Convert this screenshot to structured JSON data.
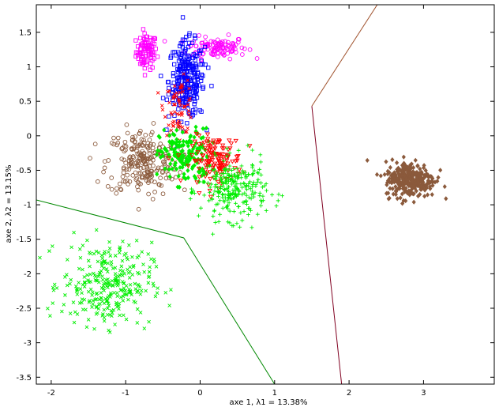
{
  "chart_data": {
    "type": "scatter",
    "title": "",
    "xlabel": "axe 1,  λ1 = 13.38%",
    "ylabel": "axe 2,  λ2 = 13.15%",
    "xlim": [
      -2.2,
      3.95
    ],
    "ylim": [
      -3.6,
      1.9
    ],
    "x_ticks": [
      -2,
      -1,
      0,
      1,
      2,
      3
    ],
    "x_tick_labels": [
      "-2",
      "-1",
      "0",
      "1",
      "2",
      "3"
    ],
    "y_ticks": [
      1.5,
      1,
      0.5,
      0,
      -0.5,
      -1,
      -1.5,
      -2,
      -2.5,
      -3,
      -3.5
    ],
    "y_tick_labels": [
      "1.5",
      "1",
      "0.5",
      "0",
      "-0.5",
      "-1",
      "-1.5",
      "-2",
      "-2.5",
      "-3",
      "-3.5"
    ],
    "grid": false,
    "legend": "none",
    "clusters": [
      {
        "color": "#ff00ff",
        "marker": "square",
        "cx": -0.72,
        "cy": 1.22,
        "sx": 0.07,
        "sy": 0.13,
        "n": 90
      },
      {
        "color": "#ff00ff",
        "marker": "circle",
        "cx": 0.22,
        "cy": 1.28,
        "sx": 0.2,
        "sy": 0.08,
        "n": 110
      },
      {
        "color": "#0000ff",
        "marker": "square",
        "cx": -0.18,
        "cy": 0.8,
        "sx": 0.12,
        "sy": 0.28,
        "n": 260
      },
      {
        "color": "#ff0000",
        "marker": "x",
        "cx": -0.28,
        "cy": 0.42,
        "sx": 0.1,
        "sy": 0.2,
        "n": 70
      },
      {
        "color": "#8b5a3c",
        "marker": "circle",
        "cx": -0.78,
        "cy": -0.38,
        "sx": 0.24,
        "sy": 0.24,
        "n": 240
      },
      {
        "color": "#00ee00",
        "marker": "diamond",
        "cx": -0.2,
        "cy": -0.3,
        "sx": 0.17,
        "sy": 0.2,
        "n": 170
      },
      {
        "color": "#ff0000",
        "marker": "triangle",
        "cx": 0.22,
        "cy": -0.35,
        "sx": 0.17,
        "sy": 0.17,
        "n": 140
      },
      {
        "color": "#00ee00",
        "marker": "plus",
        "cx": 0.45,
        "cy": -0.78,
        "sx": 0.22,
        "sy": 0.22,
        "n": 260
      },
      {
        "color": "#00ee00",
        "marker": "x",
        "cx": -1.25,
        "cy": -2.15,
        "sx": 0.3,
        "sy": 0.3,
        "n": 300
      },
      {
        "color": "#8b5a3c",
        "marker": "diamond",
        "cx": 2.82,
        "cy": -0.63,
        "sx": 0.17,
        "sy": 0.13,
        "n": 300
      }
    ],
    "boundaries": [
      {
        "color": "#a0522d",
        "points": [
          [
            1.5,
            0.43
          ],
          [
            2.42,
            1.97
          ]
        ]
      },
      {
        "color": "#800020",
        "points": [
          [
            1.5,
            0.43
          ],
          [
            1.9,
            -3.6
          ]
        ]
      },
      {
        "color": "#008800",
        "points": [
          [
            -2.2,
            -0.93
          ],
          [
            -0.22,
            -1.48
          ],
          [
            1.0,
            -3.6
          ]
        ]
      }
    ]
  }
}
